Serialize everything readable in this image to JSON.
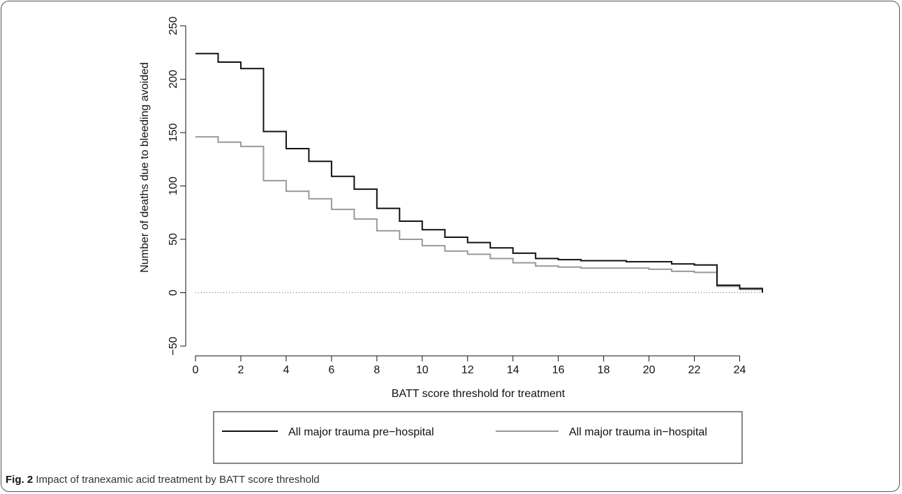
{
  "caption": {
    "label": "Fig. 2",
    "text": "Impact of tranexamic acid treatment by BATT score threshold"
  },
  "chart_data": {
    "type": "line",
    "step": true,
    "xlabel": "BATT score threshold for treatment",
    "ylabel": "Number of deaths due to bleeding avoided",
    "xlim": [
      0,
      25
    ],
    "ylim": [
      -50,
      250
    ],
    "xticks": [
      0,
      2,
      4,
      6,
      8,
      10,
      12,
      14,
      16,
      18,
      20,
      22,
      24
    ],
    "yticks": [
      -50,
      0,
      50,
      100,
      150,
      200,
      250
    ],
    "reference_line": {
      "y": 0,
      "style": "dotted"
    },
    "legend_position": "bottom",
    "x": [
      0,
      1,
      2,
      3,
      4,
      5,
      6,
      7,
      8,
      9,
      10,
      11,
      12,
      13,
      14,
      15,
      16,
      17,
      18,
      19,
      20,
      21,
      22,
      23,
      24,
      25
    ],
    "series": [
      {
        "name": "All major trauma pre−hospital",
        "color": "#111111",
        "values": [
          224,
          216,
          210,
          151,
          135,
          123,
          109,
          97,
          79,
          67,
          59,
          52,
          47,
          42,
          37,
          32,
          31,
          30,
          30,
          29,
          29,
          27,
          26,
          7,
          4,
          0
        ]
      },
      {
        "name": "All major trauma in−hospital",
        "color": "#999999",
        "values": [
          146,
          141,
          137,
          105,
          95,
          88,
          78,
          69,
          58,
          50,
          44,
          39,
          36,
          32,
          28,
          25,
          24,
          23,
          23,
          23,
          22,
          20,
          19,
          6,
          3,
          0
        ]
      }
    ]
  }
}
